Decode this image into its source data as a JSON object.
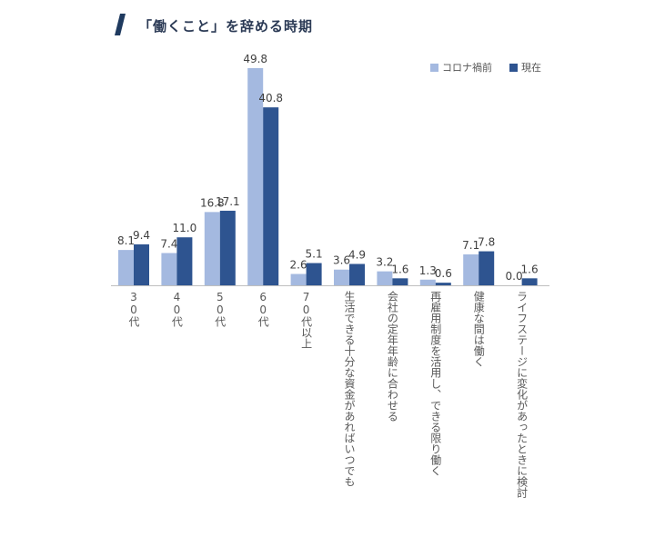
{
  "chart_data": {
    "type": "bar",
    "title": "「働くこと」を辞める時期",
    "categories": [
      "30代",
      "40代",
      "50代",
      "60代",
      "70代以上",
      "生活できる十分な資金があればいつでも",
      "会社の定年年齢に合わせる",
      "再雇用制度を活用し、できる限り働く",
      "健康な間は働く",
      "ライフステージに変化があったときに検討"
    ],
    "series": [
      {
        "name": "コロナ禍前",
        "values": [
          8.1,
          7.4,
          16.8,
          49.8,
          2.6,
          3.6,
          3.2,
          1.3,
          7.1,
          0.0
        ],
        "value_labels": [
          "8.1",
          "7.4",
          "16.8",
          "49.8",
          "2.6",
          "3.6",
          "3.2",
          "1.3",
          "7.1",
          "0.0"
        ]
      },
      {
        "name": "現在",
        "values": [
          9.4,
          11.0,
          17.1,
          40.8,
          5.1,
          4.9,
          1.6,
          0.6,
          7.8,
          1.6
        ],
        "value_labels": [
          "9.4",
          "11.0",
          "17.1",
          "40.8",
          "5.1",
          "4.9",
          "1.6",
          "0.6",
          "7.8",
          "1.6"
        ]
      }
    ],
    "colors": [
      "#a4b9e0",
      "#2e5490"
    ],
    "title_mark_color": "#1f3a5f",
    "ylim": [
      0,
      52
    ],
    "grid": false,
    "legend_position": "top-right"
  }
}
